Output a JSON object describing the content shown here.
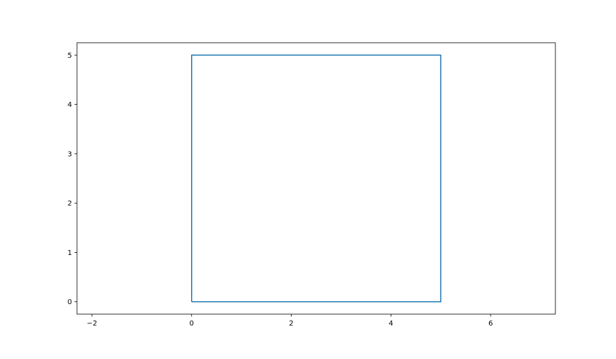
{
  "chart_data": {
    "type": "line",
    "title": "",
    "xlabel": "",
    "ylabel": "",
    "xlim": [
      -2.3,
      7.3
    ],
    "ylim": [
      -0.25,
      5.25
    ],
    "x_ticks": [
      -2,
      0,
      2,
      4,
      6
    ],
    "x_tick_labels": [
      "−2",
      "0",
      "2",
      "4",
      "6"
    ],
    "y_ticks": [
      0,
      1,
      2,
      3,
      4,
      5
    ],
    "y_tick_labels": [
      "0",
      "1",
      "2",
      "3",
      "4",
      "5"
    ],
    "grid": false,
    "legend": "none",
    "series": [
      {
        "x": [
          0,
          5,
          5,
          0,
          0
        ],
        "y": [
          0,
          0,
          5,
          5,
          0
        ],
        "color": "#1f77b4"
      }
    ]
  }
}
